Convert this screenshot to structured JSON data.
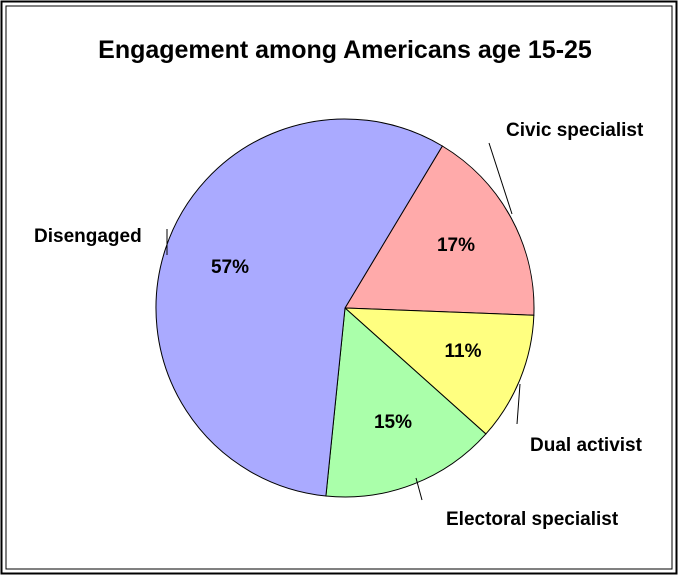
{
  "chart_data": {
    "type": "pie",
    "title": "Engagement among Americans age 15-25",
    "slices": [
      {
        "label": "Civic specialist",
        "value": 17,
        "value_label": "17%",
        "color": "#FFAAAA"
      },
      {
        "label": "Dual activist",
        "value": 11,
        "value_label": "11%",
        "color": "#FFFF80"
      },
      {
        "label": "Electoral specialist",
        "value": 15,
        "value_label": "15%",
        "color": "#AAFFAA"
      },
      {
        "label": "Disengaged",
        "value": 57,
        "value_label": "57%",
        "color": "#AAAAFF"
      }
    ],
    "start_angle_deg": -59,
    "direction": "clockwise",
    "legend": "none",
    "label_placement": "outside-with-leader-lines"
  }
}
